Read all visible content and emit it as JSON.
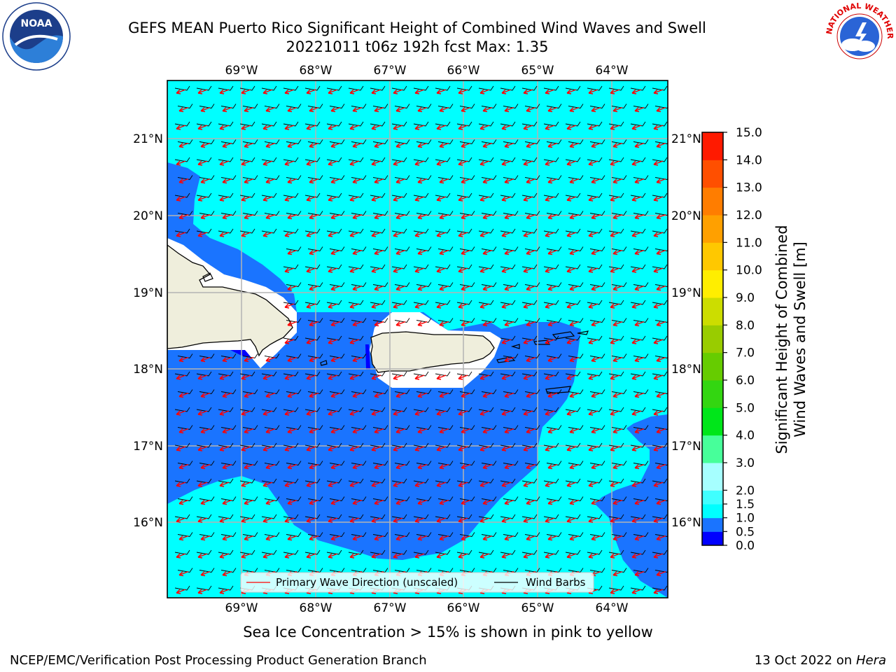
{
  "header": {
    "title_line1": "GEFS MEAN Puerto Rico Significant Height of Combined Wind Waves and Swell",
    "title_line2": "20221011 t06z 192h fcst   Max: 1.35"
  },
  "logos": {
    "left": "NOAA",
    "left_ring": "NATIONAL OCEANIC AND ATMOSPHERIC ADMINISTRATION · U.S. DEPARTMENT OF COMMERCE",
    "right_ring": "NATIONAL WEATHER SERVICE"
  },
  "map": {
    "lon_labels": [
      "69°W",
      "68°W",
      "67°W",
      "66°W",
      "65°W",
      "64°W"
    ],
    "lat_labels": [
      "21°N",
      "20°N",
      "19°N",
      "18°N",
      "17°N",
      "16°N"
    ],
    "legend": {
      "wave_label": "Primary Wave Direction (unscaled)",
      "barb_label": "Wind Barbs",
      "wave_color": "#ff0000",
      "barb_color": "#000000"
    },
    "land_color": "#efeedc",
    "colors": {
      "c0": "#0000ff",
      "c05": "#1a74ff",
      "c1": "#00ffff",
      "c15": "#40ffff",
      "c2": "#a6ffff",
      "c25": "#47ff9a",
      "c3": "#00e61a"
    }
  },
  "colorbar": {
    "label_line1": "Significant Height of Combined",
    "label_line2": "Wind Waves and Swell [m]",
    "ticks": [
      "0.0",
      "0.5",
      "1.0",
      "1.5",
      "2.0",
      "3.0",
      "4.0",
      "5.0",
      "6.0",
      "7.0",
      "8.0",
      "9.0",
      "10.0",
      "11.0",
      "12.0",
      "13.0",
      "14.0",
      "15.0"
    ],
    "colors": [
      "#0000ff",
      "#1a74ff",
      "#00ffff",
      "#40ffff",
      "#a6ffff",
      "#47ff9a",
      "#00e61a",
      "#33d611",
      "#66cc00",
      "#99cc00",
      "#ccdd00",
      "#ffee00",
      "#ffc800",
      "#ffa000",
      "#ff7d00",
      "#ff4f00",
      "#ff1a00"
    ]
  },
  "footer": {
    "subtitle": "Sea Ice Concentration > 15% is shown in pink to yellow",
    "left": "NCEP/EMC/Verification Post Processing Product Generation Branch",
    "right_prefix": "13 Oct 2022 on ",
    "right_host": "Hera"
  }
}
